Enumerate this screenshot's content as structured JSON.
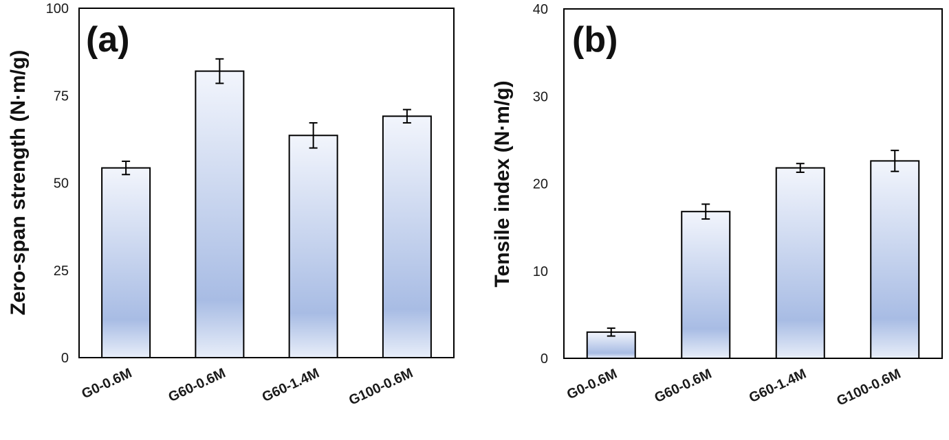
{
  "chart_data": [
    {
      "type": "bar",
      "panel_label": "(a)",
      "title": "",
      "xlabel": "",
      "ylabel": "Zero-span strength (N·m/g)",
      "categories": [
        "G0-0.6M",
        "G60-0.6M",
        "G60-1.4M",
        "G100-0.6M"
      ],
      "values": [
        54.3,
        82.0,
        63.6,
        69.1
      ],
      "errors": [
        1.9,
        3.5,
        3.6,
        1.9
      ],
      "ylim": [
        0,
        100
      ],
      "yticks": [
        0,
        25,
        50,
        75,
        100
      ],
      "grid": false,
      "bar_fill": {
        "top": "#f2f5fc",
        "middle": "#a8bce4",
        "bottom": "#e8eef9"
      },
      "bar_stroke": "#000000"
    },
    {
      "type": "bar",
      "panel_label": "(b)",
      "title": "",
      "xlabel": "",
      "ylabel": "Tensile index (N·m/g)",
      "categories": [
        "G0-0.6M",
        "G60-0.6M",
        "G60-1.4M",
        "G100-0.6M"
      ],
      "values": [
        3.0,
        16.8,
        21.8,
        22.6
      ],
      "errors": [
        0.45,
        0.85,
        0.5,
        1.2
      ],
      "ylim": [
        0,
        40
      ],
      "yticks": [
        0,
        10,
        20,
        30,
        40
      ],
      "grid": false,
      "bar_fill": {
        "top": "#f2f5fc",
        "middle": "#a8bce4",
        "bottom": "#e8eef9"
      },
      "bar_stroke": "#000000"
    }
  ]
}
